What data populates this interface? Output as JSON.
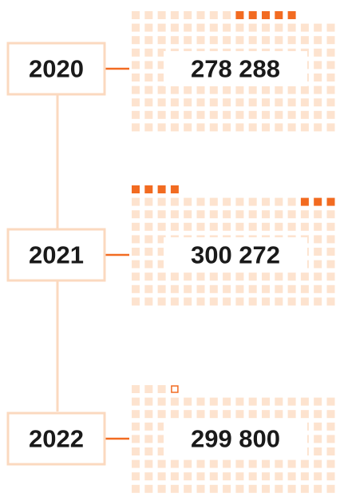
{
  "items": [
    {
      "year": "2020",
      "value": "278 288"
    },
    {
      "year": "2021",
      "value": "300 272"
    },
    {
      "year": "2022",
      "value": "299 800"
    }
  ]
}
